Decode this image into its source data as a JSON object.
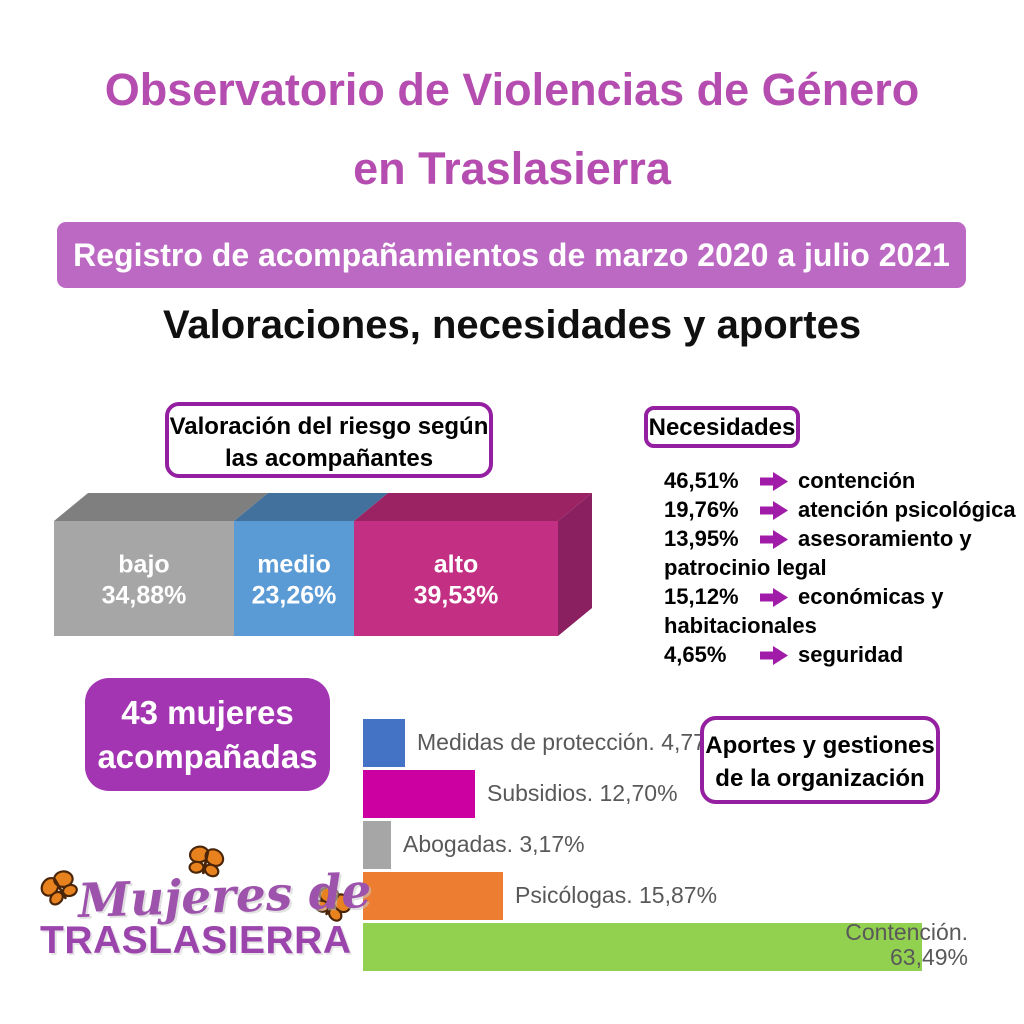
{
  "title": {
    "line1": "Observatorio de Violencias de Género",
    "line2": "en Traslasierra",
    "color": "#b54cb0"
  },
  "banner": {
    "text": "Registro de acompañamientos de marzo 2020 a julio 2021",
    "bg": "#bc69c4"
  },
  "subtitle": "Valoraciones, necesidades y aportes",
  "risk_box": {
    "line1": "Valoración del riesgo según",
    "line2": "las acompañantes"
  },
  "needs_box": {
    "label": "Necesidades"
  },
  "women_box": {
    "line1": "43 mujeres",
    "line2": "acompañadas",
    "bg": "#a335b2"
  },
  "aportes_box": {
    "line1": "Aportes y gestiones",
    "line2": "de la organización"
  },
  "logo": {
    "script": "Mujeres de",
    "block": "TRASLASIERRA",
    "script_color": "#9d52ab",
    "block_color": "#9a44ac",
    "butterfly_color": "#e8821e"
  },
  "colors": {
    "box_border": "#941fa0",
    "needs_arrow": "#a01ca8",
    "bar_label_text": "#595959"
  },
  "chart_data": [
    {
      "type": "bar",
      "subtype": "3d-stacked-horizontal",
      "title": "Valoración del riesgo según las acompañantes",
      "categories": [
        "bajo",
        "medio",
        "alto"
      ],
      "values": [
        34.88,
        23.26,
        39.53
      ],
      "value_labels": [
        "34,88%",
        "23,26%",
        "39,53%"
      ],
      "colors": {
        "front": [
          "#a6a6a6",
          "#5b9bd5",
          "#c22f83"
        ],
        "top": [
          "#7f7f7f",
          "#41719c",
          "#9b2364"
        ],
        "side": "#8a2060"
      },
      "label_color": "#ffffff"
    },
    {
      "type": "table",
      "title": "Necesidades",
      "rows": [
        [
          "46,51%",
          "contención"
        ],
        [
          "19,76%",
          "atención psicológica"
        ],
        [
          "13,95%",
          "asesoramiento y patrocinio legal"
        ],
        [
          "15,12%",
          "económicas y habitacionales"
        ],
        [
          "4,65%",
          "seguridad"
        ]
      ]
    },
    {
      "type": "bar",
      "orientation": "horizontal",
      "title": "Aportes y gestiones de la organización",
      "categories": [
        "Medidas de protección",
        "Subsidios",
        "Abogadas",
        "Psicólogas",
        "Contención"
      ],
      "values": [
        4.77,
        12.7,
        3.17,
        15.87,
        63.49
      ],
      "bar_labels": [
        "Medidas de protección. 4,77%",
        "Subsidios. 12,70%",
        "Abogadas. 3,17%",
        "Psicólogas. 15,87%",
        "Contención. 63,49%"
      ],
      "colors": [
        "#4472c4",
        "#cc00a0",
        "#a6a6a6",
        "#ed7d31",
        "#92d050"
      ],
      "label_color": "#595959",
      "xlim": [
        0,
        65
      ]
    }
  ]
}
